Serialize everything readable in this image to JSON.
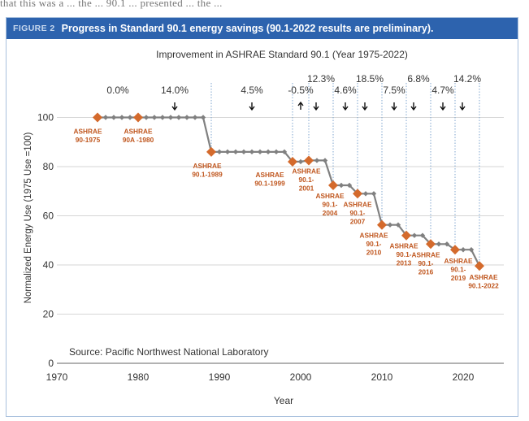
{
  "top_strip_text": "that this was a ... the ... 90.1 ... presented ... the ... ",
  "figure": {
    "label": "FIGURE 2",
    "caption": "Progress in Standard 90.1 energy savings (90.1-2022 results are preliminary)."
  },
  "colors": {
    "header": "#2d63ae",
    "line": "#808080",
    "marker_small": "#808080",
    "marker_standard": "#d46a2c",
    "label_standard": "#c0571f",
    "grid": "#d6d6d6",
    "guide": "#7fa6cf"
  },
  "chart_data": {
    "type": "line",
    "title": "Improvement in ASHRAE Standard 90.1 (Year 1975-2022)",
    "xlabel": "Year",
    "ylabel": "Normalized Energy Use (1975 Use =100)",
    "xlim": [
      1970,
      2025
    ],
    "ylim": [
      0,
      120
    ],
    "xticks": [
      1970,
      1980,
      1990,
      2000,
      2010,
      2020
    ],
    "yticks": [
      0,
      20,
      40,
      60,
      80,
      100
    ],
    "grid": true,
    "source": "Source: Pacific Northwest National Laboratory",
    "series": [
      {
        "points": [
          [
            1975,
            100
          ],
          [
            1976,
            100
          ],
          [
            1977,
            100
          ],
          [
            1978,
            100
          ],
          [
            1979,
            100
          ],
          [
            1980,
            100
          ],
          [
            1981,
            100
          ],
          [
            1982,
            100
          ],
          [
            1983,
            100
          ],
          [
            1984,
            100
          ],
          [
            1985,
            100
          ],
          [
            1986,
            100
          ],
          [
            1987,
            100
          ],
          [
            1988,
            100
          ],
          [
            1989,
            86
          ],
          [
            1990,
            86
          ],
          [
            1991,
            86
          ],
          [
            1992,
            86
          ],
          [
            1993,
            86
          ],
          [
            1994,
            86
          ],
          [
            1995,
            86
          ],
          [
            1996,
            86
          ],
          [
            1997,
            86
          ],
          [
            1998,
            86
          ],
          [
            1999,
            82
          ],
          [
            2000,
            82
          ],
          [
            2001,
            82.5
          ],
          [
            2002,
            82.5
          ],
          [
            2003,
            82.5
          ],
          [
            2004,
            72.4
          ],
          [
            2005,
            72.4
          ],
          [
            2006,
            72.4
          ],
          [
            2007,
            69
          ],
          [
            2008,
            69
          ],
          [
            2009,
            69
          ],
          [
            2010,
            56.3
          ],
          [
            2011,
            56.3
          ],
          [
            2012,
            56.3
          ],
          [
            2013,
            52
          ],
          [
            2014,
            52
          ],
          [
            2015,
            52
          ],
          [
            2016,
            48.5
          ],
          [
            2017,
            48.5
          ],
          [
            2018,
            48.5
          ],
          [
            2019,
            46.2
          ],
          [
            2020,
            46.2
          ],
          [
            2021,
            46.2
          ],
          [
            2022,
            39.6
          ]
        ]
      }
    ],
    "standards": [
      {
        "year": 1975,
        "value": 100,
        "label_lines": [
          "ASHRAE",
          "90-1975"
        ]
      },
      {
        "year": 1980,
        "value": 100,
        "label_lines": [
          "ASHRAE",
          "90A -1980"
        ]
      },
      {
        "year": 1989,
        "value": 86,
        "label_lines": [
          "ASHRAE",
          "90.1-1989"
        ]
      },
      {
        "year": 1999,
        "value": 82,
        "label_lines": [
          "ASHRAE",
          "90.1-1999"
        ]
      },
      {
        "year": 2001,
        "value": 82.5,
        "label_lines": [
          "ASHRAE",
          "90.1-",
          "2001"
        ]
      },
      {
        "year": 2004,
        "value": 72.4,
        "label_lines": [
          "ASHRAE",
          "90.1-",
          "2004"
        ]
      },
      {
        "year": 2007,
        "value": 69,
        "label_lines": [
          "ASHRAE",
          "90.1-",
          "2007"
        ]
      },
      {
        "year": 2010,
        "value": 56.3,
        "label_lines": [
          "ASHRAE",
          "90.1-",
          "2010"
        ]
      },
      {
        "year": 2013,
        "value": 52,
        "label_lines": [
          "ASHRAE",
          "90.1-",
          "2013"
        ]
      },
      {
        "year": 2016,
        "value": 48.5,
        "label_lines": [
          "ASHRAE",
          "90.1-",
          "2016"
        ]
      },
      {
        "year": 2019,
        "value": 46.2,
        "label_lines": [
          "ASHRAE",
          "90.1-",
          "2019"
        ]
      },
      {
        "year": 2022,
        "value": 39.6,
        "label_lines": [
          "ASHRAE",
          "90.1-2022"
        ]
      }
    ],
    "improvements": [
      {
        "text": "0.0%",
        "year": 1977.5,
        "direction": "none"
      },
      {
        "text": "14.0%",
        "year": 1984.5,
        "direction": "down"
      },
      {
        "text": "4.5%",
        "year": 1994,
        "direction": "down"
      },
      {
        "text": "-0.5%",
        "year": 2000,
        "direction": "up"
      },
      {
        "text": "12.3%",
        "year": 2002.5,
        "direction": "down"
      },
      {
        "text": "4.6%",
        "year": 2005.5,
        "direction": "down"
      },
      {
        "text": "18.5%",
        "year": 2008.5,
        "direction": "down"
      },
      {
        "text": "7.5%",
        "year": 2011.5,
        "direction": "down"
      },
      {
        "text": "6.8%",
        "year": 2014.5,
        "direction": "down"
      },
      {
        "text": "4.7%",
        "year": 2017.5,
        "direction": "down"
      },
      {
        "text": "14.2%",
        "year": 2020.5,
        "direction": "down"
      }
    ]
  }
}
